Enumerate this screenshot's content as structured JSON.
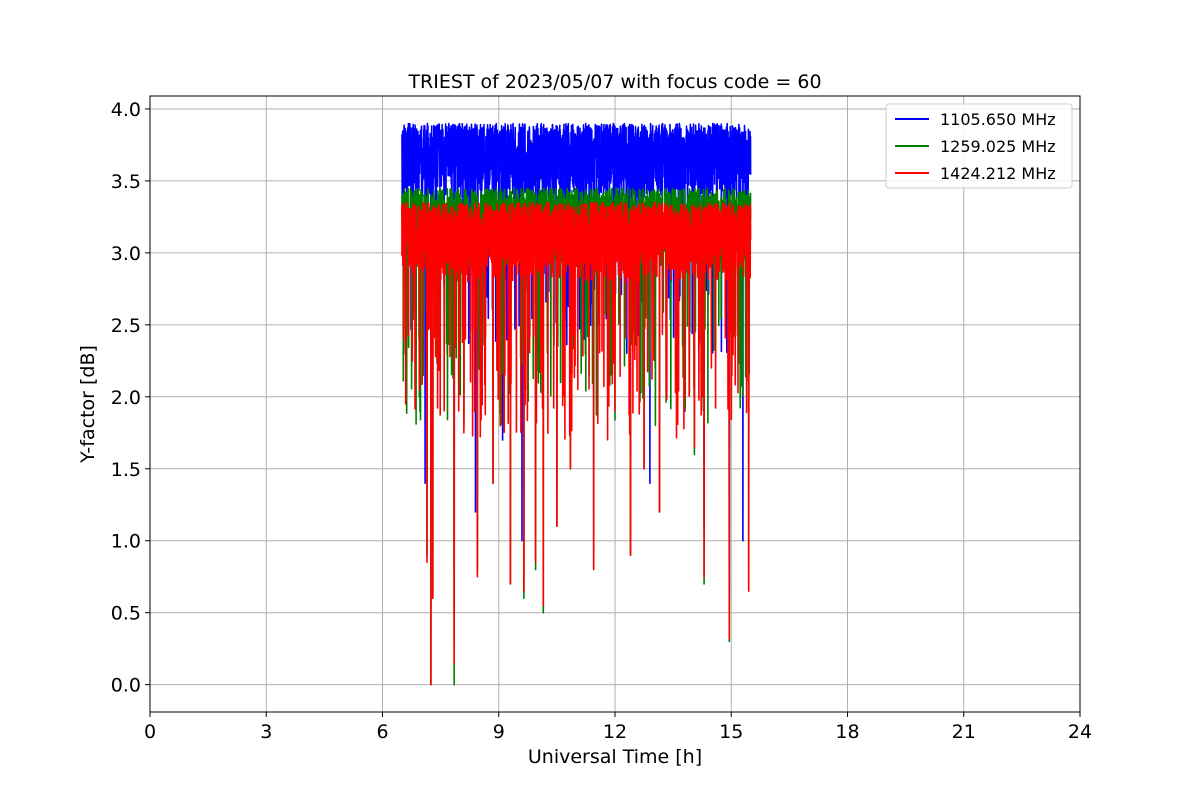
{
  "chart_data": {
    "type": "line",
    "title": "TRIEST of 2023/05/07 with focus code = 60",
    "xlabel": "Universal Time [h]",
    "ylabel": "Y-factor [dB]",
    "xlim": [
      0,
      24
    ],
    "ylim": [
      -0.19,
      4.09
    ],
    "xticks": [
      0,
      3,
      6,
      9,
      12,
      15,
      18,
      21,
      24
    ],
    "yticks": [
      0.0,
      0.5,
      1.0,
      1.5,
      2.0,
      2.5,
      3.0,
      3.5,
      4.0
    ],
    "xtick_labels": [
      "0",
      "3",
      "6",
      "9",
      "12",
      "15",
      "18",
      "21",
      "24"
    ],
    "ytick_labels": [
      "0.0",
      "0.5",
      "1.0",
      "1.5",
      "2.0",
      "2.5",
      "3.0",
      "3.5",
      "4.0"
    ],
    "grid": true,
    "legend_position": "top-right",
    "time_range": [
      6.5,
      15.5
    ],
    "series": [
      {
        "name": "1105.650 MHz",
        "color": "#0000ff",
        "typical_range": [
          3.1,
          3.9
        ],
        "dips": [
          [
            6.8,
            2.9
          ],
          [
            7.1,
            1.4
          ],
          [
            7.25,
            0.6
          ],
          [
            7.85,
            0.3
          ],
          [
            8.4,
            1.2
          ],
          [
            9.1,
            1.7
          ],
          [
            9.6,
            1.0
          ],
          [
            10.0,
            2.3
          ],
          [
            11.2,
            2.4
          ],
          [
            12.4,
            1.6
          ],
          [
            12.9,
            1.4
          ],
          [
            13.8,
            1.9
          ],
          [
            14.3,
            1.1
          ],
          [
            14.95,
            0.6
          ],
          [
            15.3,
            1.0
          ]
        ]
      },
      {
        "name": "1259.025 MHz",
        "color": "#008000",
        "typical_range": [
          2.6,
          3.45
        ],
        "dips": [
          [
            6.55,
            2.3
          ],
          [
            6.95,
            2.0
          ],
          [
            7.15,
            0.9
          ],
          [
            7.25,
            0.0
          ],
          [
            7.3,
            0.6
          ],
          [
            7.85,
            0.0
          ],
          [
            8.1,
            1.8
          ],
          [
            8.45,
            0.8
          ],
          [
            8.85,
            1.4
          ],
          [
            9.3,
            0.7
          ],
          [
            9.65,
            0.6
          ],
          [
            9.95,
            0.8
          ],
          [
            10.15,
            0.5
          ],
          [
            10.5,
            1.1
          ],
          [
            10.85,
            1.5
          ],
          [
            11.45,
            0.8
          ],
          [
            12.4,
            0.9
          ],
          [
            12.75,
            1.5
          ],
          [
            13.15,
            1.2
          ],
          [
            14.05,
            1.6
          ],
          [
            14.3,
            0.7
          ],
          [
            14.95,
            0.3
          ],
          [
            15.45,
            0.7
          ]
        ]
      },
      {
        "name": "1424.212 MHz",
        "color": "#ff0000",
        "typical_range": [
          2.5,
          3.35
        ],
        "dips": [
          [
            6.55,
            2.4
          ],
          [
            6.95,
            2.05
          ],
          [
            7.15,
            0.85
          ],
          [
            7.25,
            0.0
          ],
          [
            7.3,
            0.6
          ],
          [
            7.85,
            0.15
          ],
          [
            8.1,
            1.75
          ],
          [
            8.45,
            0.75
          ],
          [
            8.85,
            1.4
          ],
          [
            9.3,
            0.7
          ],
          [
            9.65,
            0.65
          ],
          [
            9.95,
            0.85
          ],
          [
            10.15,
            0.55
          ],
          [
            10.5,
            1.1
          ],
          [
            10.85,
            1.5
          ],
          [
            11.45,
            0.8
          ],
          [
            12.4,
            0.9
          ],
          [
            12.75,
            1.5
          ],
          [
            13.15,
            1.2
          ],
          [
            14.05,
            1.65
          ],
          [
            14.3,
            0.75
          ],
          [
            14.95,
            0.32
          ],
          [
            15.45,
            0.65
          ]
        ]
      }
    ]
  }
}
